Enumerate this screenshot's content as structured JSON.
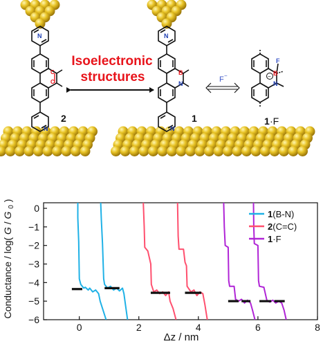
{
  "scheme": {
    "title_line1": "Isoelectronic",
    "title_line2": "structures",
    "fluoride": "F",
    "fluoride_charge": "−",
    "atoms": {
      "N": "N",
      "B": "B",
      "C": "C",
      "F": "F",
      "minus": "−"
    },
    "labels": {
      "mol2": "2",
      "mol1": "1",
      "mol1F_a": "1",
      "mol1F_b": "·F"
    },
    "colors": {
      "title": "#e8141b",
      "gold": "#d9b21c",
      "boron": "#e8141b",
      "nitrogen": "#1f3fb3",
      "fluoride": "#3a55c8"
    }
  },
  "chart_data": {
    "type": "line",
    "xlabel_prefix": "Δz / nm",
    "ylabel": "Conductance / log( G/G0 )",
    "ylabel_parts": {
      "prefix": "Conductance / log(",
      "G": "G",
      "slash": "/",
      "G0": "G",
      "sub0": "0",
      "suffix": ")"
    },
    "xlim": [
      -1.2,
      8
    ],
    "ylim": [
      -6,
      0.3
    ],
    "xticks": [
      0,
      2,
      4,
      6,
      8
    ],
    "yticks": [
      0,
      -1,
      -2,
      -3,
      -4,
      -5,
      -6
    ],
    "grid": false,
    "legend_position": "top-right",
    "series": [
      {
        "key": "bn",
        "name": "1(B-N)",
        "name_bold": "1",
        "name_rest": "(B-N)",
        "color": "#1fb1e6",
        "traces": [
          [
            [
              -0.05,
              0.3
            ],
            [
              -0.05,
              -0.5
            ],
            [
              -0.02,
              -1.8
            ],
            [
              0.0,
              -3.8
            ],
            [
              0.05,
              -4.1
            ],
            [
              0.1,
              -4.2
            ],
            [
              0.15,
              -4.3
            ],
            [
              0.2,
              -4.25
            ],
            [
              0.3,
              -4.4
            ],
            [
              0.35,
              -4.3
            ],
            [
              0.45,
              -4.5
            ],
            [
              0.55,
              -4.4
            ],
            [
              0.65,
              -4.6
            ],
            [
              0.7,
              -5.0
            ],
            [
              0.8,
              -5.5
            ],
            [
              0.9,
              -6.0
            ]
          ],
          [
            [
              0.72,
              0.3
            ],
            [
              0.74,
              -0.6
            ],
            [
              0.78,
              -1.9
            ],
            [
              0.82,
              -3.8
            ],
            [
              0.85,
              -4.1
            ],
            [
              0.95,
              -4.3
            ],
            [
              1.05,
              -4.2
            ],
            [
              1.15,
              -4.4
            ],
            [
              1.25,
              -4.3
            ],
            [
              1.35,
              -4.45
            ],
            [
              1.45,
              -4.3
            ],
            [
              1.5,
              -4.6
            ],
            [
              1.55,
              -5.2
            ],
            [
              1.62,
              -6.0
            ]
          ]
        ],
        "plateaus": [
          [
            -0.25,
            0.1,
            -4.35
          ],
          [
            0.85,
            1.35,
            -4.3
          ]
        ]
      },
      {
        "key": "cc",
        "name": "2(C=C)",
        "name_bold": "2",
        "name_rest": "(C=C)",
        "color": "#ff4f6e",
        "traces": [
          [
            [
              2.15,
              0.3
            ],
            [
              2.18,
              -1.0
            ],
            [
              2.2,
              -2.1
            ],
            [
              2.3,
              -2.3
            ],
            [
              2.4,
              -3.0
            ],
            [
              2.42,
              -4.1
            ],
            [
              2.5,
              -4.5
            ],
            [
              2.6,
              -4.4
            ],
            [
              2.7,
              -4.6
            ],
            [
              2.8,
              -4.5
            ],
            [
              2.9,
              -4.7
            ],
            [
              3.0,
              -4.5
            ],
            [
              3.05,
              -5.0
            ],
            [
              3.15,
              -5.4
            ],
            [
              3.25,
              -6.0
            ]
          ],
          [
            [
              3.3,
              0.3
            ],
            [
              3.32,
              -1.5
            ],
            [
              3.35,
              -2.2
            ],
            [
              3.5,
              -2.2
            ],
            [
              3.55,
              -2.9
            ],
            [
              3.6,
              -3.1
            ],
            [
              3.62,
              -4.2
            ],
            [
              3.75,
              -4.5
            ],
            [
              3.85,
              -4.4
            ],
            [
              3.95,
              -4.7
            ],
            [
              4.05,
              -4.5
            ],
            [
              4.15,
              -4.6
            ],
            [
              4.22,
              -5.2
            ],
            [
              4.3,
              -6.0
            ]
          ]
        ],
        "plateaus": [
          [
            2.4,
            3.05,
            -4.55
          ],
          [
            3.55,
            4.1,
            -4.55
          ]
        ]
      },
      {
        "key": "f",
        "name": "1·F",
        "name_bold": "1",
        "name_rest": "·F",
        "color": "#b024d6",
        "traces": [
          [
            [
              4.85,
              0.3
            ],
            [
              4.87,
              -1.0
            ],
            [
              4.9,
              -2.0
            ],
            [
              5.0,
              -2.1
            ],
            [
              5.02,
              -3.9
            ],
            [
              5.05,
              -4.2
            ],
            [
              5.2,
              -4.2
            ],
            [
              5.25,
              -4.9
            ],
            [
              5.35,
              -5.0
            ],
            [
              5.45,
              -4.9
            ],
            [
              5.55,
              -5.1
            ],
            [
              5.65,
              -4.95
            ],
            [
              5.75,
              -5.1
            ],
            [
              5.82,
              -5.5
            ],
            [
              5.9,
              -6.0
            ]
          ],
          [
            [
              5.85,
              0.3
            ],
            [
              5.86,
              -1.0
            ],
            [
              5.88,
              -1.9
            ],
            [
              6.0,
              -2.0
            ],
            [
              6.02,
              -3.9
            ],
            [
              6.05,
              -4.2
            ],
            [
              6.2,
              -4.25
            ],
            [
              6.3,
              -4.95
            ],
            [
              6.4,
              -5.05
            ],
            [
              6.5,
              -4.95
            ],
            [
              6.6,
              -5.1
            ],
            [
              6.7,
              -5.0
            ],
            [
              6.8,
              -5.1
            ],
            [
              6.88,
              -5.5
            ],
            [
              6.95,
              -6.0
            ]
          ]
        ],
        "plateaus": [
          [
            5.0,
            5.35,
            -5.0
          ],
          [
            5.45,
            5.75,
            -5.0
          ],
          [
            6.05,
            6.45,
            -5.0
          ],
          [
            6.55,
            6.9,
            -5.0
          ]
        ]
      }
    ]
  }
}
